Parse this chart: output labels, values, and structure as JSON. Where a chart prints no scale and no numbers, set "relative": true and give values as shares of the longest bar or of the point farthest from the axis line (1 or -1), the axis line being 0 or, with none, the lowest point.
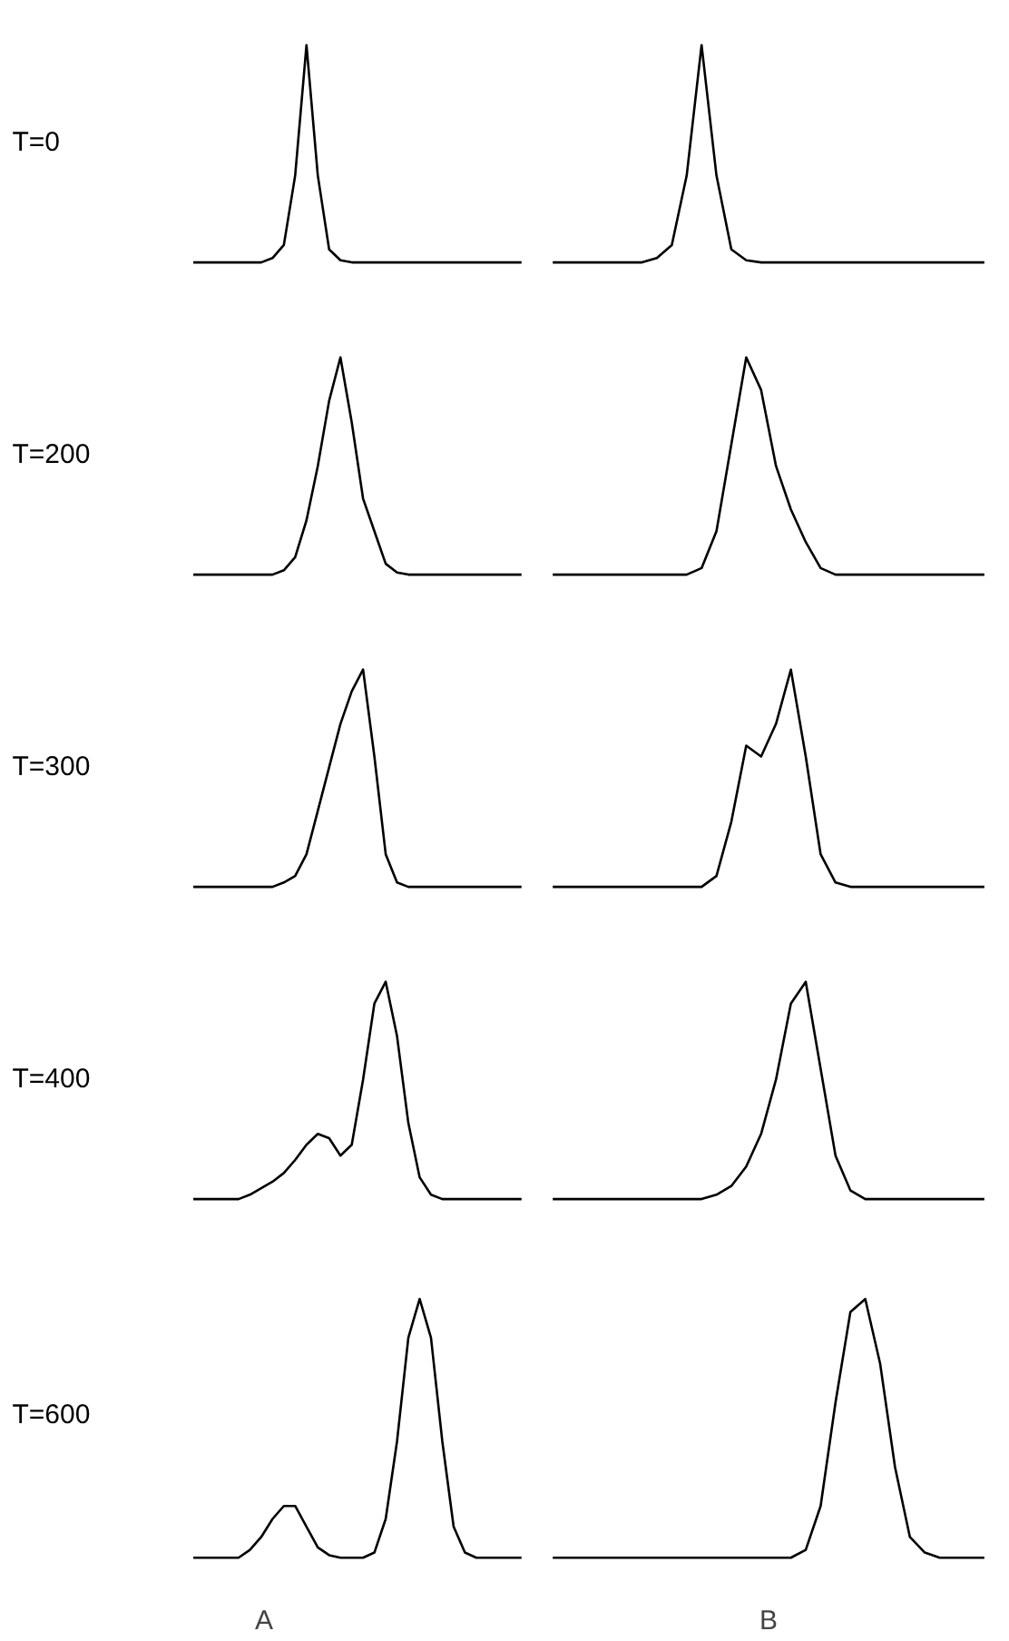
{
  "chart_data": [
    {
      "type": "line",
      "title": "T=0",
      "relative": true,
      "categories": [
        null,
        null,
        null,
        null,
        null,
        null,
        null,
        null,
        null,
        null,
        null,
        null,
        null,
        null,
        null,
        null,
        null,
        null,
        null,
        null,
        null,
        null,
        null,
        null,
        null,
        null,
        null,
        null,
        null,
        null
      ],
      "series": [
        {
          "color": "#000000",
          "values": [
            0,
            0,
            0,
            0,
            0,
            0,
            0,
            0.02,
            0.08,
            0.4,
            1,
            0.4,
            0.06,
            0.01,
            0,
            0,
            0,
            0,
            0,
            0,
            0,
            0,
            0,
            0,
            0,
            0,
            0,
            0,
            0,
            0
          ]
        }
      ]
    },
    {
      "type": "line",
      "relative": true,
      "categories": [
        null,
        null,
        null,
        null,
        null,
        null,
        null,
        null,
        null,
        null,
        null,
        null,
        null,
        null,
        null,
        null,
        null,
        null,
        null,
        null,
        null,
        null,
        null,
        null,
        null,
        null,
        null,
        null,
        null,
        null
      ],
      "series": [
        {
          "color": "#000000",
          "values": [
            0,
            0,
            0,
            0,
            0,
            0,
            0,
            0.02,
            0.08,
            0.4,
            1,
            0.4,
            0.06,
            0.01,
            0,
            0,
            0,
            0,
            0,
            0,
            0,
            0,
            0,
            0,
            0,
            0,
            0,
            0,
            0,
            0
          ]
        }
      ]
    },
    {
      "type": "line",
      "title": "T=200",
      "relative": true,
      "categories": [
        null,
        null,
        null,
        null,
        null,
        null,
        null,
        null,
        null,
        null,
        null,
        null,
        null,
        null,
        null,
        null,
        null,
        null,
        null,
        null,
        null,
        null,
        null,
        null,
        null,
        null,
        null,
        null,
        null,
        null
      ],
      "series": [
        {
          "color": "#000000",
          "values": [
            0,
            0,
            0,
            0,
            0,
            0,
            0,
            0,
            0.02,
            0.08,
            0.25,
            0.5,
            0.8,
            1,
            0.7,
            0.35,
            0.2,
            0.05,
            0.01,
            0,
            0,
            0,
            0,
            0,
            0,
            0,
            0,
            0,
            0,
            0
          ]
        }
      ]
    },
    {
      "type": "line",
      "relative": true,
      "categories": [
        null,
        null,
        null,
        null,
        null,
        null,
        null,
        null,
        null,
        null,
        null,
        null,
        null,
        null,
        null,
        null,
        null,
        null,
        null,
        null,
        null,
        null,
        null,
        null,
        null,
        null,
        null,
        null,
        null,
        null
      ],
      "series": [
        {
          "color": "#000000",
          "values": [
            0,
            0,
            0,
            0,
            0,
            0,
            0,
            0,
            0,
            0,
            0.03,
            0.2,
            0.6,
            1,
            0.85,
            0.5,
            0.3,
            0.15,
            0.03,
            0,
            0,
            0,
            0,
            0,
            0,
            0,
            0,
            0,
            0,
            0
          ]
        }
      ]
    },
    {
      "type": "line",
      "title": "T=300",
      "relative": true,
      "categories": [
        null,
        null,
        null,
        null,
        null,
        null,
        null,
        null,
        null,
        null,
        null,
        null,
        null,
        null,
        null,
        null,
        null,
        null,
        null,
        null,
        null,
        null,
        null,
        null,
        null,
        null,
        null,
        null,
        null,
        null
      ],
      "series": [
        {
          "color": "#000000",
          "values": [
            0,
            0,
            0,
            0,
            0,
            0,
            0,
            0,
            0.02,
            0.05,
            0.15,
            0.35,
            0.55,
            0.75,
            0.9,
            1,
            0.6,
            0.15,
            0.02,
            0,
            0,
            0,
            0,
            0,
            0,
            0,
            0,
            0,
            0,
            0
          ]
        }
      ]
    },
    {
      "type": "line",
      "relative": true,
      "categories": [
        null,
        null,
        null,
        null,
        null,
        null,
        null,
        null,
        null,
        null,
        null,
        null,
        null,
        null,
        null,
        null,
        null,
        null,
        null,
        null,
        null,
        null,
        null,
        null,
        null,
        null,
        null,
        null,
        null,
        null
      ],
      "series": [
        {
          "color": "#000000",
          "values": [
            0,
            0,
            0,
            0,
            0,
            0,
            0,
            0,
            0,
            0,
            0,
            0.05,
            0.3,
            0.65,
            0.6,
            0.75,
            1,
            0.6,
            0.15,
            0.02,
            0,
            0,
            0,
            0,
            0,
            0,
            0,
            0,
            0,
            0
          ]
        }
      ]
    },
    {
      "type": "line",
      "title": "T=400",
      "relative": true,
      "categories": [
        null,
        null,
        null,
        null,
        null,
        null,
        null,
        null,
        null,
        null,
        null,
        null,
        null,
        null,
        null,
        null,
        null,
        null,
        null,
        null,
        null,
        null,
        null,
        null,
        null,
        null,
        null,
        null,
        null,
        null
      ],
      "series": [
        {
          "color": "#000000",
          "values": [
            0,
            0,
            0,
            0,
            0,
            0.02,
            0.05,
            0.08,
            0.12,
            0.18,
            0.25,
            0.3,
            0.28,
            0.2,
            0.25,
            0.55,
            0.9,
            1,
            0.75,
            0.35,
            0.1,
            0.02,
            0,
            0,
            0,
            0,
            0,
            0,
            0,
            0
          ]
        }
      ]
    },
    {
      "type": "line",
      "relative": true,
      "categories": [
        null,
        null,
        null,
        null,
        null,
        null,
        null,
        null,
        null,
        null,
        null,
        null,
        null,
        null,
        null,
        null,
        null,
        null,
        null,
        null,
        null,
        null,
        null,
        null,
        null,
        null,
        null,
        null,
        null,
        null
      ],
      "series": [
        {
          "color": "#000000",
          "values": [
            0,
            0,
            0,
            0,
            0,
            0,
            0,
            0,
            0,
            0,
            0,
            0.02,
            0.06,
            0.15,
            0.3,
            0.55,
            0.9,
            1,
            0.6,
            0.2,
            0.04,
            0,
            0,
            0,
            0,
            0,
            0,
            0,
            0,
            0
          ]
        }
      ]
    },
    {
      "type": "line",
      "title": "T=600",
      "xlabel": "A",
      "relative": true,
      "categories": [
        null,
        null,
        null,
        null,
        null,
        null,
        null,
        null,
        null,
        null,
        null,
        null,
        null,
        null,
        null,
        null,
        null,
        null,
        null,
        null,
        null,
        null,
        null,
        null,
        null,
        null,
        null,
        null,
        null,
        null
      ],
      "series": [
        {
          "color": "#000000",
          "values": [
            0,
            0,
            0,
            0,
            0,
            0.03,
            0.08,
            0.15,
            0.2,
            0.2,
            0.12,
            0.04,
            0.01,
            0,
            0,
            0,
            0.02,
            0.15,
            0.45,
            0.85,
            1,
            0.85,
            0.45,
            0.12,
            0.02,
            0,
            0,
            0,
            0,
            0
          ]
        }
      ]
    },
    {
      "type": "line",
      "xlabel": "B",
      "relative": true,
      "categories": [
        null,
        null,
        null,
        null,
        null,
        null,
        null,
        null,
        null,
        null,
        null,
        null,
        null,
        null,
        null,
        null,
        null,
        null,
        null,
        null,
        null,
        null,
        null,
        null,
        null,
        null,
        null,
        null,
        null,
        null
      ],
      "series": [
        {
          "color": "#000000",
          "values": [
            0,
            0,
            0,
            0,
            0,
            0,
            0,
            0,
            0,
            0,
            0,
            0,
            0,
            0,
            0,
            0,
            0,
            0.03,
            0.2,
            0.6,
            0.95,
            1,
            0.75,
            0.35,
            0.08,
            0.02,
            0,
            0,
            0,
            0
          ]
        }
      ]
    }
  ]
}
